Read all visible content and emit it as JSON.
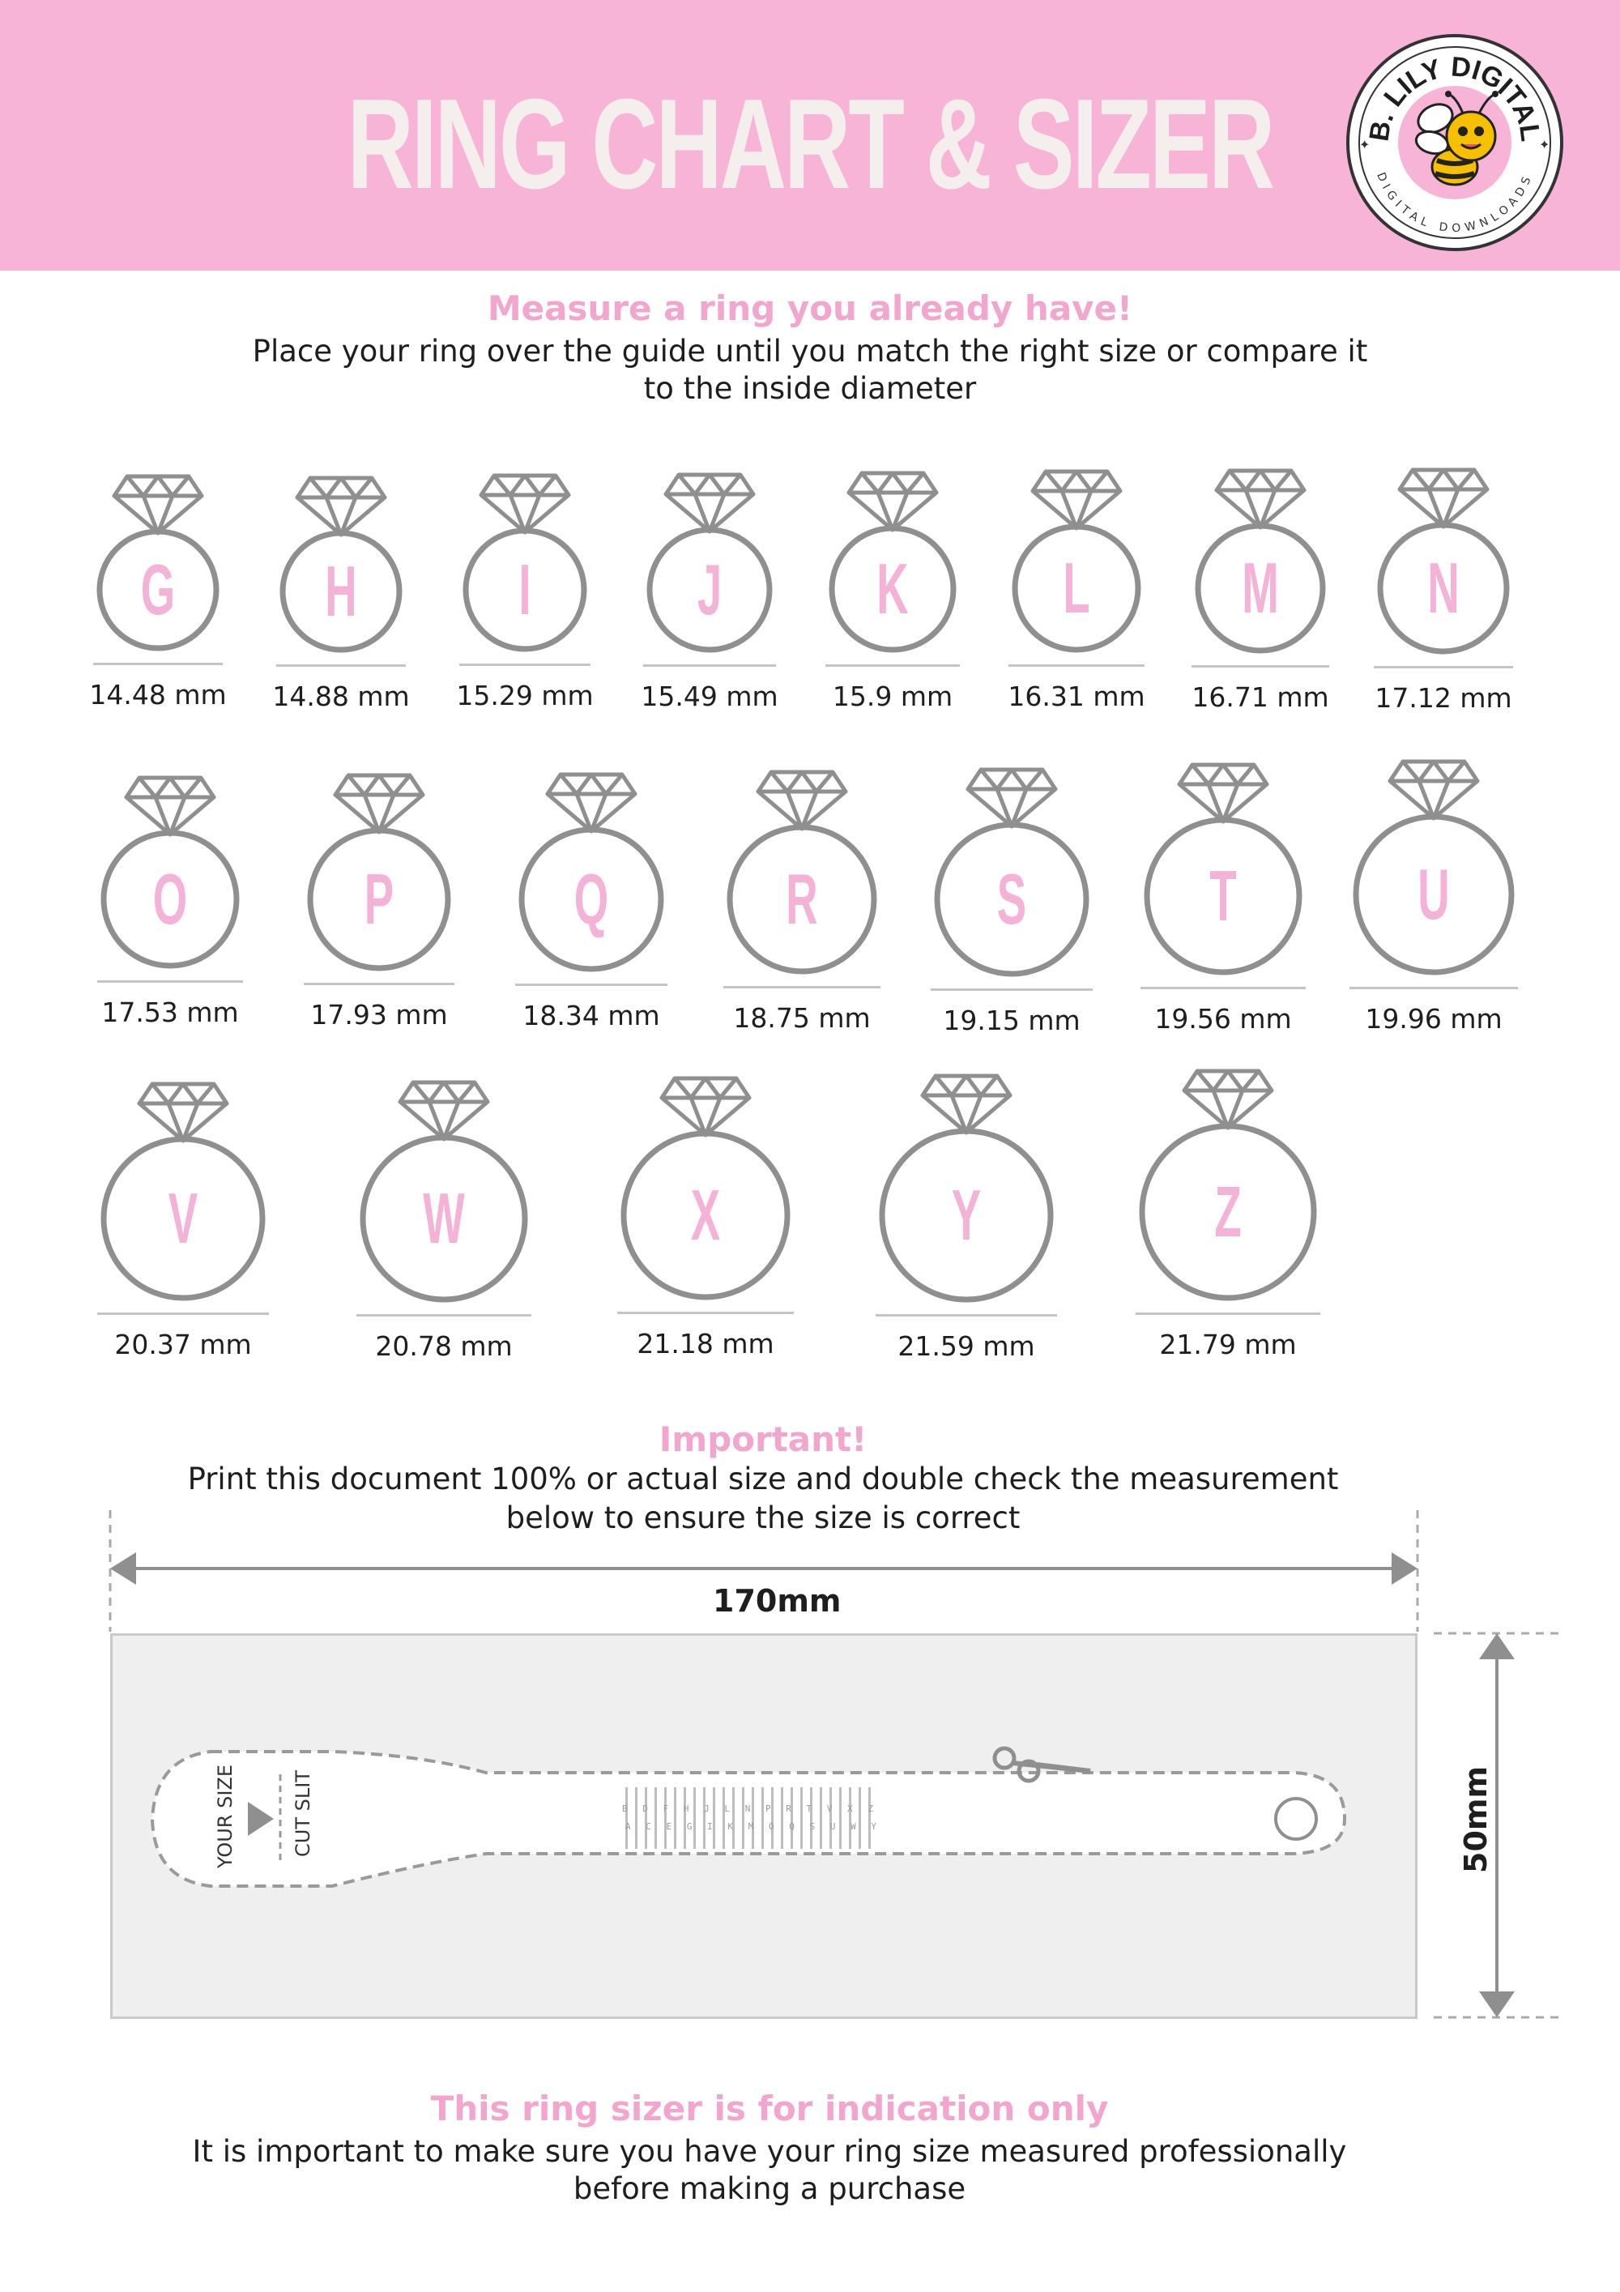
{
  "header": {
    "title": "RING CHART & SIZER",
    "logo_top": "B. LILY DIGITAL",
    "logo_bottom": "DIGITAL DOWNLOADS"
  },
  "intro": {
    "heading": "Measure a ring you already have!",
    "line1": "Place your ring over the guide until you match the right size or compare it",
    "line2": "to the inside diameter"
  },
  "rings": [
    {
      "letter": "G",
      "size": "14.48 mm"
    },
    {
      "letter": "H",
      "size": "14.88 mm"
    },
    {
      "letter": "I",
      "size": "15.29 mm"
    },
    {
      "letter": "J",
      "size": "15.49 mm"
    },
    {
      "letter": "K",
      "size": "15.9 mm"
    },
    {
      "letter": "L",
      "size": "16.31 mm"
    },
    {
      "letter": "M",
      "size": "16.71 mm"
    },
    {
      "letter": "N",
      "size": "17.12 mm"
    },
    {
      "letter": "O",
      "size": "17.53 mm"
    },
    {
      "letter": "P",
      "size": "17.93 mm"
    },
    {
      "letter": "Q",
      "size": "18.34 mm"
    },
    {
      "letter": "R",
      "size": "18.75 mm"
    },
    {
      "letter": "S",
      "size": "19.15 mm"
    },
    {
      "letter": "T",
      "size": "19.56 mm"
    },
    {
      "letter": "U",
      "size": "19.96 mm"
    },
    {
      "letter": "V",
      "size": "20.37 mm"
    },
    {
      "letter": "W",
      "size": "20.78 mm"
    },
    {
      "letter": "X",
      "size": "21.18 mm"
    },
    {
      "letter": "Y",
      "size": "21.59 mm"
    },
    {
      "letter": "Z",
      "size": "21.79 mm"
    }
  ],
  "important": {
    "heading": "Important!",
    "line1": "Print this document 100% or actual size and double check the measurement",
    "line2": "below to ensure the size is correct"
  },
  "sizer": {
    "width_label": "170mm",
    "height_label": "50mm",
    "your_size": "YOUR SIZE",
    "cut_slit": "CUT SLIT",
    "scale_top": "B D F H J L N P R T V X Z",
    "scale_bottom": "A C E G I K M O Q S U W Y"
  },
  "disclaimer": {
    "heading": "This ring sizer is for indication only",
    "line1": "It is important to make sure you have your ring size measured professionally",
    "line2": "before making a purchase"
  },
  "colors": {
    "header_bg": "#f8b4d7",
    "accent_pink": "#f3a6cd",
    "ring_gray": "#8f8f8f",
    "letter_pink": "#f4b2d6"
  }
}
